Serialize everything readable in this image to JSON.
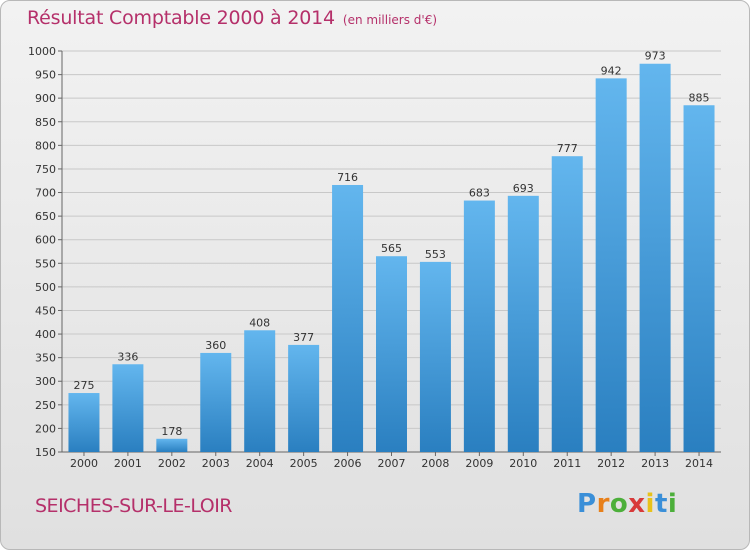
{
  "title": "Résultat Comptable 2000 à 2014",
  "subtitle": "(en milliers d'€)",
  "commune": "SEICHES-SUR-LE-LOIR",
  "logo": {
    "letters": [
      "P",
      "r",
      "o",
      "x",
      "i",
      "t",
      "i"
    ],
    "colors": [
      "#3a8fd8",
      "#e8801a",
      "#4caf3a",
      "#d83a3a",
      "#e8c21a",
      "#3a8fd8",
      "#4caf3a"
    ]
  },
  "colors": {
    "bar_light": "#63b6ee",
    "bar_dark": "#2a7fc0",
    "title": "#b5306a",
    "grid": "#c8c8c8"
  },
  "chart_data": {
    "type": "bar",
    "title": "Résultat Comptable 2000 à 2014",
    "subtitle": "(en milliers d'€)",
    "categories": [
      "2000",
      "2001",
      "2002",
      "2003",
      "2004",
      "2005",
      "2006",
      "2007",
      "2008",
      "2009",
      "2010",
      "2011",
      "2012",
      "2013",
      "2014"
    ],
    "values": [
      275,
      336,
      178,
      360,
      408,
      377,
      716,
      565,
      553,
      683,
      693,
      777,
      942,
      973,
      885
    ],
    "ylim": [
      150,
      1000
    ],
    "yticks": [
      150,
      200,
      250,
      300,
      350,
      400,
      450,
      500,
      550,
      600,
      650,
      700,
      750,
      800,
      850,
      900,
      950,
      1000
    ],
    "grid": true,
    "data_labels": true
  }
}
